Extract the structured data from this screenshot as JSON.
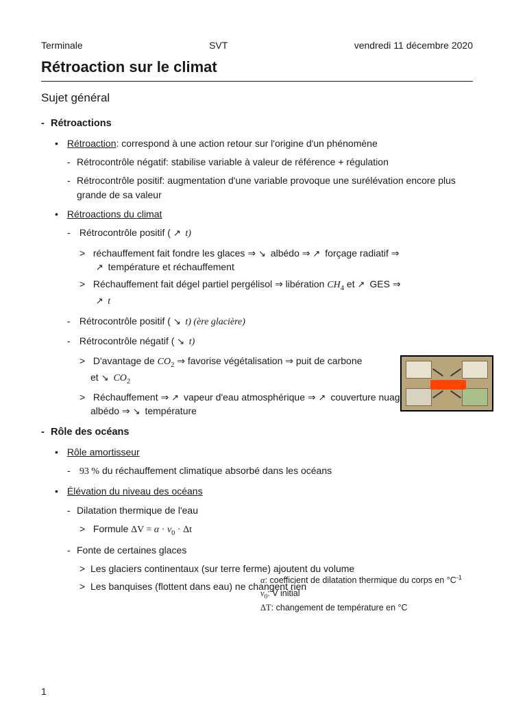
{
  "header": {
    "left": "Terminale",
    "center": "SVT",
    "right": "vendredi 11 décembre 2020"
  },
  "title": "Rétroaction sur le climat",
  "subtitle": "Sujet général",
  "s1": {
    "h": "Rétroactions",
    "b1_label": "Rétroaction",
    "b1_rest": ": correspond à une action retour sur l'origine d'un phénomène",
    "b1_d1": "Rétrocontrôle négatif: stabilise variable à valeur de référence + régulation",
    "b1_d2": "Rétrocontrôle positif: augmentation d'une variable provoque une surélévation encore plus grande de sa valeur",
    "b2_label": "Rétroactions du climat",
    "b2_d1_pre": "Rétrocontrôle positif ( ",
    "b2_d1_post": " t)",
    "b2_d1_g1": "réchauffement fait fondre les glaces ⇒ ",
    "b2_d1_g1b": " albédo ⇒ ",
    "b2_d1_g1c": " forçage radiatif ⇒ ",
    "b2_d1_g1d": " température et réchauffement",
    "b2_d1_g2a": "Réchauffement fait dégel partiel pergélisol ⇒ libération ",
    "b2_d1_g2b": " et ",
    "b2_d1_g2c": " GES ⇒ ",
    "b2_d1_g2d": " t",
    "b2_d2_pre": "Rétrocontrôle positif ( ",
    "b2_d2_post": " t) (ère glacière)",
    "b2_d3_pre": "Rétrocontrôle négatif ( ",
    "b2_d3_post": " t)",
    "b2_d3_g1a": "D'avantage de ",
    "b2_d3_g1b": " ⇒ favorise végétalisation ⇒ puit de carbone et ",
    "b2_d3_g2a": "Réchauffement ⇒ ",
    "b2_d3_g2b": " vapeur d'eau atmosphérique ⇒ ",
    "b2_d3_g2c": " couverture nuageuse ⇒ ",
    "b2_d3_g2d": " albédo ⇒ ",
    "b2_d3_g2e": " température"
  },
  "s2": {
    "h": "Rôle des océans",
    "b1_label": "Rôle amortisseur",
    "b1_d1_pct": "93 %",
    "b1_d1_rest": " du réchauffement climatique absorbé dans les océans",
    "b2_label": "Élévation du niveau des océans",
    "b2_d1": "Dilatation thermique de l'eau",
    "b2_d1_g1_pre": "Formule ",
    "b2_d2": "Fonte de certaines glaces",
    "b2_d2_g1": "Les glaciers continentaux (sur terre ferme) ajoutent du volume",
    "b2_d2_g2": "Les banquises (flottent dans eau) ne changent rien"
  },
  "side": {
    "l1a": "α",
    "l1b": ": coefficient de dilatation thermique du corps en °C",
    "l2a": "v",
    "l2b": ": V initial",
    "l3a": "ΔT",
    "l3b": ": changement de température en °C"
  },
  "formula": {
    "dv": "ΔV",
    "eq": " = ",
    "a": "α",
    "dot": " · ",
    "v0": "v",
    "dt": "Δt"
  },
  "ch4": "CH",
  "co2": "CO",
  "page": "1"
}
